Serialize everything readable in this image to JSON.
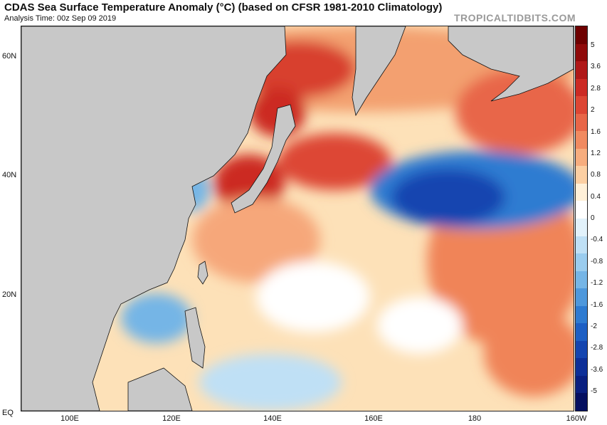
{
  "header": {
    "title": "CDAS Sea Surface Temperature Anomaly (°C) (based on CFSR 1981-2010 Climatology)",
    "subtitle": "Analysis Time: 00z Sep 09 2019",
    "watermark": "TROPICALTIDBITS.COM"
  },
  "map": {
    "region": "Western North Pacific",
    "latitude_labels": [
      "60N",
      "40N",
      "20N",
      "EQ"
    ],
    "longitude_labels": [
      "100E",
      "120E",
      "140E",
      "160E",
      "180",
      "160W"
    ],
    "land_color": "#c8c8c8",
    "ocean_base_color": "#fde1b8"
  },
  "colorbar": {
    "unit": "°C",
    "labels": [
      "5",
      "3.6",
      "2.8",
      "2",
      "1.6",
      "1.2",
      "0.8",
      "0.4",
      "0",
      "-0.4",
      "-0.8",
      "-1.2",
      "-1.6",
      "-2",
      "-2.8",
      "-3.6",
      "-5"
    ],
    "colors": [
      "#6e0000",
      "#8f0a0a",
      "#b01818",
      "#cc2a24",
      "#dd4634",
      "#e86648",
      "#f18a60",
      "#f7ad7e",
      "#fccfa2",
      "#fff0d8",
      "#ffffff",
      "#e2f2fb",
      "#bfe0f5",
      "#9accee",
      "#75b5e6",
      "#4e98dc",
      "#2e7bd1",
      "#1d5fc4",
      "#1445b0",
      "#0d2f98",
      "#091f80",
      "#040f60"
    ]
  }
}
